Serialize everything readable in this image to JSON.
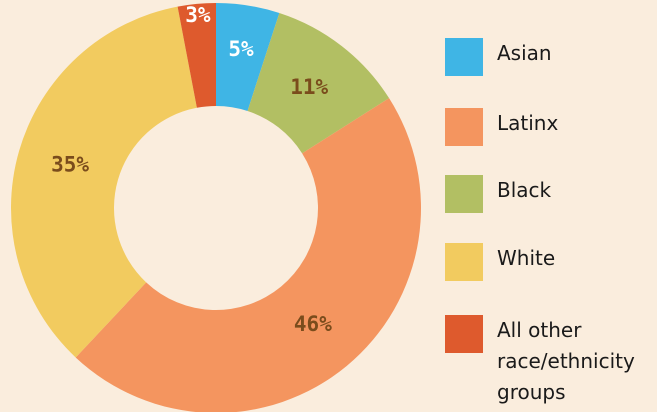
{
  "chart_data": {
    "type": "pie",
    "donut": true,
    "categories": [
      "Asian",
      "Black",
      "Latinx",
      "White",
      "All other race/ethnicity groups"
    ],
    "values": [
      5,
      11,
      46,
      35,
      3
    ],
    "value_labels": [
      "5%",
      "11%",
      "46%",
      "35%",
      "3%"
    ],
    "colors": [
      "#3fb5e5",
      "#b2bf63",
      "#f4955f",
      "#f2cb5f",
      "#de5a2d"
    ]
  }
}
